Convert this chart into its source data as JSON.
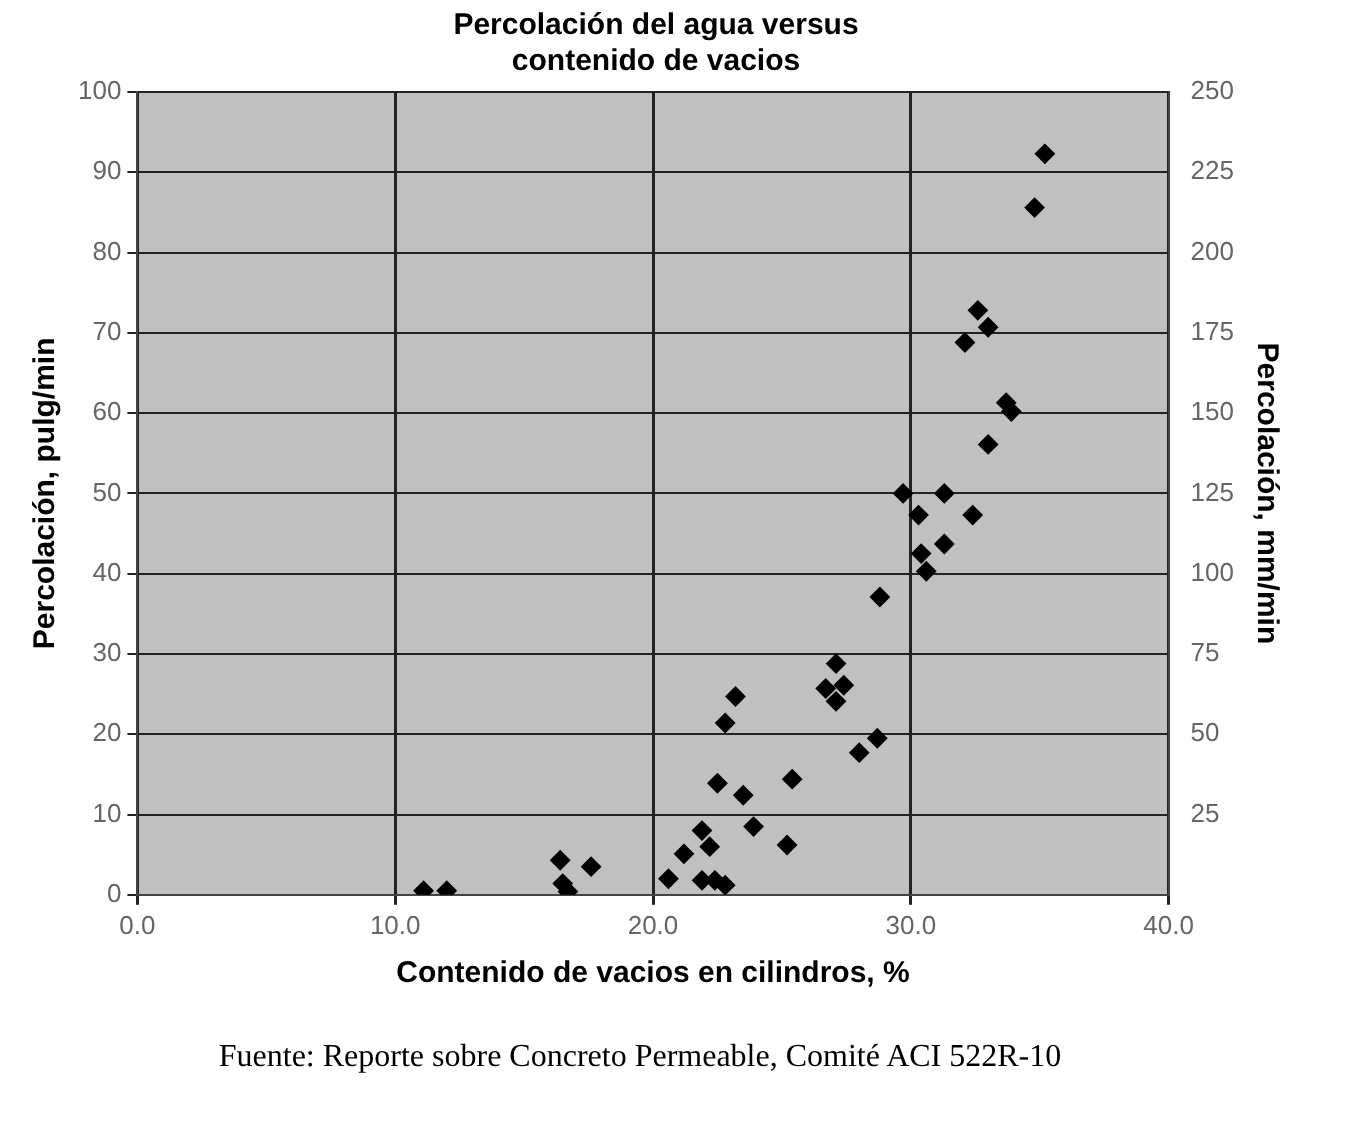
{
  "chart_data": {
    "type": "scatter",
    "title": "Percolación del agua versus\ncontenido de vacios",
    "xlabel": "Contenido de vacios en cilindros, %",
    "ylabel": "Percolación, pulg/min",
    "y2label": "Percolación, mm/min",
    "annotations": [
      "Fuente: Reporte sobre Concreto Permeable, Comité ACI 522R-10"
    ],
    "x": [
      11.1,
      12.0,
      16.4,
      17.6,
      16.5,
      16.7,
      20.6,
      21.2,
      21.9,
      22.2,
      21.9,
      22.4,
      22.8,
      22.5,
      22.8,
      23.2,
      23.5,
      23.9,
      25.2,
      25.4,
      27.1,
      26.7,
      27.4,
      27.1,
      28.0,
      28.7,
      28.8,
      29.7,
      31.3,
      30.3,
      32.4,
      30.4,
      31.3,
      30.6,
      35.2,
      34.8,
      32.6,
      33.0,
      32.1,
      33.7,
      33.9,
      33.0
    ],
    "values": [
      0.5,
      0.5,
      4.3,
      3.5,
      1.4,
      0.4,
      2.0,
      5.1,
      8.0,
      6.0,
      1.8,
      1.8,
      1.2,
      13.9,
      21.4,
      24.7,
      12.4,
      8.5,
      6.2,
      14.4,
      28.8,
      25.7,
      26.1,
      24.1,
      17.7,
      19.5,
      37.1,
      50.0,
      50.0,
      47.3,
      47.3,
      42.5,
      43.7,
      40.3,
      92.3,
      85.6,
      72.8,
      70.7,
      68.8,
      61.3,
      60.2,
      56.1
    ],
    "color": "#000000",
    "marker": "diamond",
    "grid": true,
    "legend": false,
    "xlim": [
      0,
      40
    ],
    "xticks": [
      {
        "value": 0,
        "label": "0.0"
      },
      {
        "value": 10,
        "label": "10.0"
      },
      {
        "value": 20,
        "label": "20.0"
      },
      {
        "value": 30,
        "label": "30.0"
      },
      {
        "value": 40,
        "label": "40.0"
      }
    ],
    "ylim": [
      0,
      100
    ],
    "yticks": [
      0,
      10,
      20,
      30,
      40,
      50,
      60,
      70,
      80,
      90,
      100
    ],
    "y2lim": [
      0,
      250
    ],
    "y2ticks": [
      {
        "value": 0,
        "label": null
      },
      25,
      50,
      75,
      100,
      125,
      150,
      175,
      200,
      225,
      250
    ]
  }
}
